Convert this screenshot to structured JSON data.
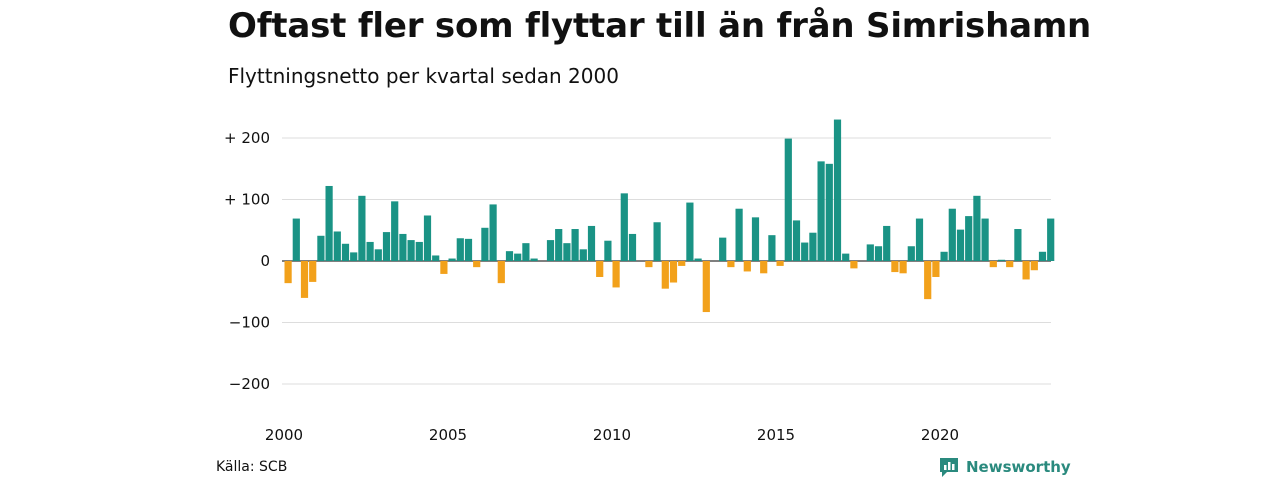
{
  "chart_data": {
    "type": "bar",
    "title": "Oftast fler som flyttar till än från Simrishamn",
    "subtitle": "Flyttningsnetto per kvartal sedan 2000",
    "xlabel": "",
    "ylabel": "",
    "ylim": [
      -200,
      230
    ],
    "y_ticks": [
      {
        "value": 200,
        "label": "+ 200"
      },
      {
        "value": 100,
        "label": "+ 100"
      },
      {
        "value": 0,
        "label": "0"
      },
      {
        "value": -100,
        "label": "−100"
      },
      {
        "value": -200,
        "label": "−200"
      }
    ],
    "x_ticks": [
      {
        "value": 2000,
        "label": "2000"
      },
      {
        "value": 2005,
        "label": "2005"
      },
      {
        "value": 2010,
        "label": "2010"
      },
      {
        "value": 2015,
        "label": "2015"
      },
      {
        "value": 2020,
        "label": "2020"
      }
    ],
    "x_start": 2000,
    "period": "quarter",
    "values": [
      -36,
      69,
      -60,
      -34,
      41,
      122,
      48,
      28,
      14,
      106,
      31,
      19,
      47,
      97,
      44,
      34,
      31,
      74,
      9,
      -21,
      4,
      37,
      36,
      -10,
      54,
      92,
      -36,
      16,
      12,
      29,
      4,
      0,
      34,
      52,
      29,
      52,
      19,
      57,
      -26,
      33,
      -43,
      110,
      44,
      0,
      -10,
      63,
      -45,
      -35,
      -8,
      95,
      4,
      -83,
      0,
      38,
      -10,
      85,
      -17,
      71,
      -20,
      42,
      -8,
      199,
      66,
      30,
      46,
      162,
      158,
      230,
      12,
      -12,
      0,
      27,
      24,
      57,
      -18,
      -20,
      24,
      69,
      -62,
      -26,
      15,
      85,
      51,
      73,
      106,
      69,
      -10,
      2,
      -10,
      52,
      -30,
      -15,
      15,
      69
    ],
    "grid": true,
    "legend": "none",
    "colors": {
      "positive": "#1a9385",
      "negative": "#f2a11b",
      "grid": "#dddddd"
    }
  },
  "footer": {
    "source": "Källa: SCB",
    "logo_text": "Newsworthy"
  }
}
